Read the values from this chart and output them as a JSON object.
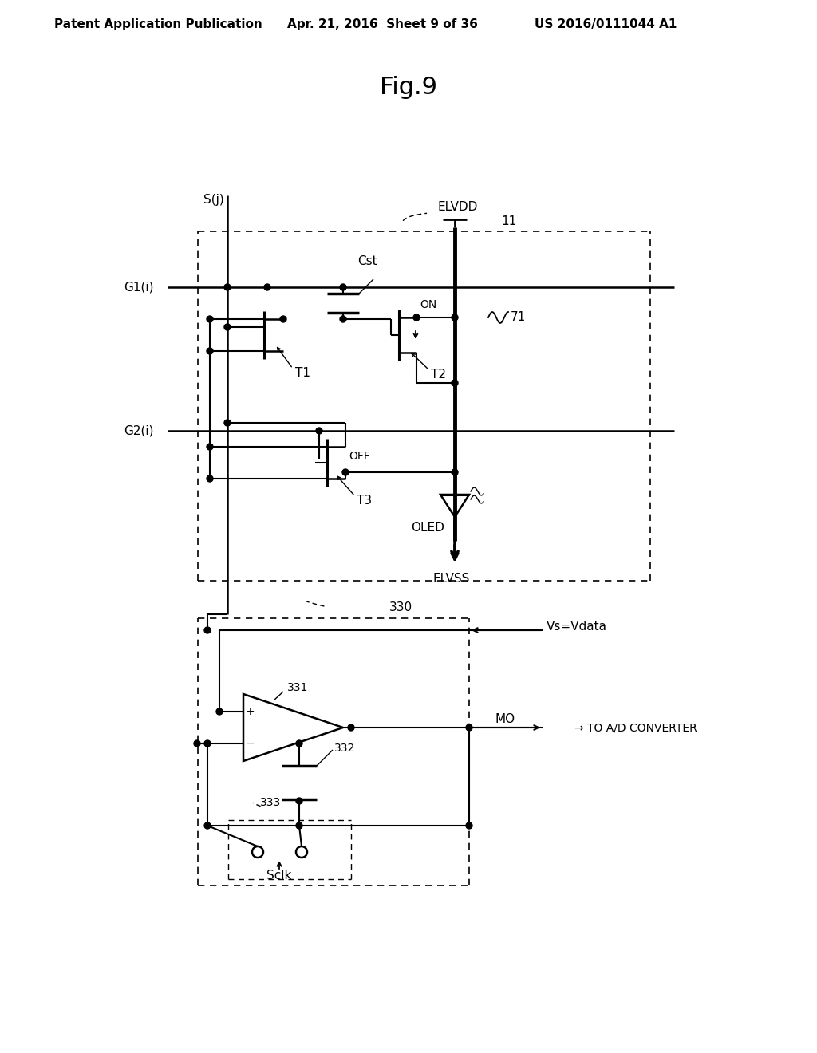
{
  "bg_color": "#ffffff",
  "line_color": "#000000",
  "header_left": "Patent Application Publication",
  "header_center": "Apr. 21, 2016  Sheet 9 of 36",
  "header_right": "US 2016/0111044 A1",
  "title": "Fig.9"
}
